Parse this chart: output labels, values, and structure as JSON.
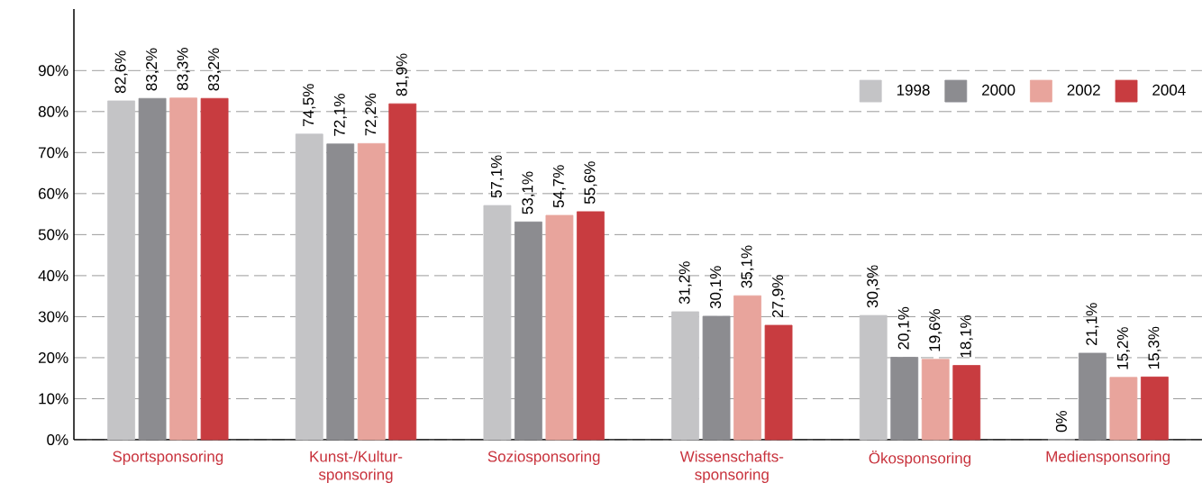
{
  "chart_data": {
    "type": "bar",
    "categories": [
      "Sportsponsoring",
      "Kunst-/Kultur-sponsoring",
      "Soziosponsoring",
      "Wissenschafts-sponsoring",
      "Ökosponsoring",
      "Mediensponsoring"
    ],
    "series": [
      {
        "name": "1998",
        "color": "#c4c4c6",
        "values": [
          82.6,
          74.5,
          57.1,
          31.2,
          30.3,
          0
        ],
        "value_labels": [
          "82,6%",
          "74,5%",
          "57,1%",
          "31,2%",
          "30,3%",
          "0%"
        ]
      },
      {
        "name": "2000",
        "color": "#8c8c90",
        "values": [
          83.2,
          72.1,
          53.1,
          30.1,
          20.1,
          21.1
        ],
        "value_labels": [
          "83,2%",
          "72,1%",
          "53,1%",
          "30,1%",
          "20,1%",
          "21,1%"
        ]
      },
      {
        "name": "2002",
        "color": "#e8a49c",
        "values": [
          83.3,
          72.2,
          54.7,
          35.1,
          19.6,
          15.2
        ],
        "value_labels": [
          "83,3%",
          "72,2%",
          "54,7%",
          "35,1%",
          "19,6%",
          "15,2%"
        ]
      },
      {
        "name": "2004",
        "color": "#c83c40",
        "values": [
          83.2,
          81.9,
          55.6,
          27.9,
          18.1,
          15.3
        ],
        "value_labels": [
          "83,2%",
          "81,9%",
          "55,6%",
          "27,9%",
          "18,1%",
          "15,3%"
        ]
      }
    ],
    "ylim": [
      0,
      105
    ],
    "yticks": [
      {
        "value": 0,
        "label": "0%"
      },
      {
        "value": 10,
        "label": "10%"
      },
      {
        "value": 20,
        "label": "20%"
      },
      {
        "value": 30,
        "label": "30%"
      },
      {
        "value": 40,
        "label": "40%"
      },
      {
        "value": 50,
        "label": "50%"
      },
      {
        "value": 60,
        "label": "60%"
      },
      {
        "value": 70,
        "label": "70%"
      },
      {
        "value": 80,
        "label": "80%"
      },
      {
        "value": 90,
        "label": "90%"
      }
    ],
    "grid": "y",
    "legend": "top right"
  }
}
